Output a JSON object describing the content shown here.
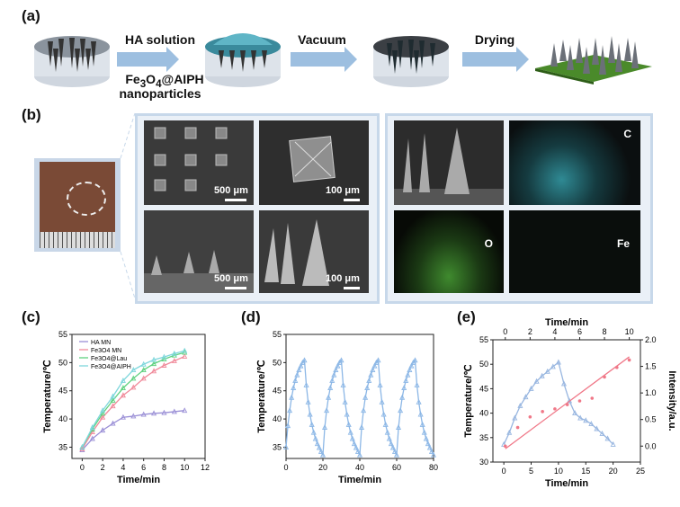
{
  "panels": {
    "a": "(a)",
    "b": "(b)",
    "c": "(c)",
    "d": "(d)",
    "e": "(e)"
  },
  "process": {
    "step1": "HA solution",
    "step1_sub": "Fe3O4@AIPH",
    "step1_sub2": "nanoparticles",
    "step2": "Vacuum",
    "step3": "Drying"
  },
  "sem": {
    "scale_tl": "500 μm",
    "scale_tr": "100 μm",
    "scale_bl": "500 μm",
    "scale_br": "100 μm"
  },
  "eds": {
    "c_label": "C",
    "o_label": "O",
    "fe_label": "Fe"
  },
  "colors": {
    "ha": "#9a8fd6",
    "fe3o4": "#f08a9a",
    "lau": "#5fd17f",
    "aiph": "#7fd7dc",
    "cycle": "#8cb7e6",
    "intensity": "#f07888",
    "temp_e": "#98b6e0"
  },
  "chart_data": [
    {
      "type": "line",
      "xlabel": "Time/min",
      "ylabel": "Temperature/℃",
      "xlim": [
        -1,
        12
      ],
      "ylim": [
        33,
        55
      ],
      "xticks": [
        "0",
        "2",
        "4",
        "6",
        "8",
        "10",
        "12"
      ],
      "yticks": [
        "35",
        "40",
        "45",
        "50",
        "55"
      ],
      "x": [
        0,
        1,
        2,
        3,
        4,
        5,
        6,
        7,
        8,
        9,
        10
      ],
      "series": [
        {
          "name": "HA MN",
          "values": [
            34.5,
            36.5,
            38.0,
            39.2,
            40.3,
            40.5,
            40.8,
            41.0,
            41.1,
            41.3,
            41.5
          ]
        },
        {
          "name": "Fe3O4 MN",
          "values": [
            34.7,
            37.7,
            40.3,
            42.3,
            44.2,
            45.6,
            47.2,
            48.5,
            49.5,
            50.3,
            51.1
          ]
        },
        {
          "name": "Fe3O4@Lau",
          "values": [
            35.0,
            38.2,
            41.0,
            43.3,
            45.5,
            47.2,
            48.7,
            49.8,
            50.6,
            51.3,
            51.8
          ]
        },
        {
          "name": "Fe3O4@AIPH",
          "values": [
            35.0,
            38.5,
            41.5,
            44.0,
            46.8,
            48.7,
            49.7,
            50.5,
            51.0,
            51.6,
            52.1
          ]
        }
      ],
      "legend": "top-left"
    },
    {
      "type": "line",
      "xlabel": "Time/min",
      "ylabel": "Temperature/℃",
      "xlim": [
        0,
        80
      ],
      "ylim": [
        33,
        55
      ],
      "xticks": [
        "0",
        "20",
        "40",
        "60",
        "80"
      ],
      "yticks": [
        "35",
        "40",
        "45",
        "50",
        "55"
      ],
      "x": [
        0,
        1,
        2,
        3,
        4,
        5,
        6,
        7,
        8,
        9,
        10,
        11,
        12,
        13,
        14,
        15,
        16,
        17,
        18,
        19,
        20,
        21,
        22,
        23,
        24,
        25,
        26,
        27,
        28,
        29,
        30,
        31,
        32,
        33,
        34,
        35,
        36,
        37,
        38,
        39,
        40,
        41,
        42,
        43,
        44,
        45,
        46,
        47,
        48,
        49,
        50,
        51,
        52,
        53,
        54,
        55,
        56,
        57,
        58,
        59,
        60,
        61,
        62,
        63,
        64,
        65,
        66,
        67,
        68,
        69,
        70,
        71,
        72,
        73,
        74,
        75,
        76,
        77,
        78,
        79,
        80
      ],
      "series": [
        {
          "name": "",
          "values": [
            35.0,
            38.8,
            41.5,
            43.8,
            45.5,
            46.8,
            47.8,
            48.7,
            49.4,
            50.0,
            50.4,
            46.0,
            43.0,
            40.8,
            39.0,
            37.6,
            36.5,
            35.6,
            34.9,
            34.2,
            33.6,
            38.5,
            41.5,
            43.8,
            45.5,
            46.8,
            47.8,
            48.7,
            49.4,
            50.0,
            50.4,
            46.0,
            43.0,
            40.8,
            39.0,
            37.6,
            36.5,
            35.6,
            34.9,
            34.2,
            33.6,
            38.5,
            41.5,
            43.8,
            45.5,
            46.8,
            47.8,
            48.7,
            49.4,
            50.0,
            50.4,
            46.0,
            43.0,
            40.8,
            39.0,
            37.6,
            36.5,
            35.6,
            34.9,
            34.2,
            33.6,
            38.5,
            41.5,
            43.8,
            45.5,
            46.8,
            47.8,
            48.7,
            49.4,
            50.0,
            50.4,
            46.0,
            43.0,
            40.8,
            39.0,
            37.6,
            36.5,
            35.6,
            34.9,
            34.2,
            33.6
          ]
        }
      ]
    },
    {
      "type": "line",
      "xlabel": "Time/min",
      "ylabel": "Temperature/℃",
      "y2label": "Intensity/a.u.",
      "top_xlabel": "Time/min",
      "xlim": [
        -2,
        25
      ],
      "ylim": [
        30,
        55
      ],
      "y2lim": [
        -0.3,
        2.0
      ],
      "top_xlim": [
        -1,
        10.9
      ],
      "xticks": [
        "0",
        "5",
        "10",
        "15",
        "20",
        "25"
      ],
      "yticks": [
        "30",
        "35",
        "40",
        "45",
        "50",
        "55"
      ],
      "y2ticks": [
        "0.0",
        "0.5",
        "1.0",
        "1.5",
        "2.0"
      ],
      "top_xticks": [
        "0",
        "2",
        "4",
        "6",
        "8",
        "10"
      ],
      "series": [
        {
          "name": "Temperature",
          "x": [
            0,
            1,
            2,
            3,
            4,
            5,
            6,
            7,
            8,
            9,
            10,
            11,
            12,
            13,
            14,
            15,
            16,
            17,
            18,
            19,
            20
          ],
          "values": [
            33.6,
            36.0,
            39.0,
            41.5,
            43.3,
            45.0,
            46.5,
            47.6,
            48.5,
            49.5,
            50.4,
            46.0,
            42.5,
            40.0,
            39.0,
            38.5,
            37.8,
            36.8,
            35.8,
            34.8,
            33.6
          ]
        },
        {
          "name": "Intensity",
          "axis": "top-right",
          "x": [
            0,
            1,
            2,
            3,
            4,
            5,
            6,
            7,
            8,
            9,
            10
          ],
          "values": [
            0.0,
            0.35,
            0.55,
            0.65,
            0.7,
            0.78,
            0.85,
            0.9,
            1.3,
            1.48,
            1.62
          ]
        },
        {
          "name": "Intensity fit",
          "axis": "top-right",
          "x": [
            0,
            10
          ],
          "values": [
            -0.05,
            1.68
          ]
        }
      ]
    }
  ]
}
